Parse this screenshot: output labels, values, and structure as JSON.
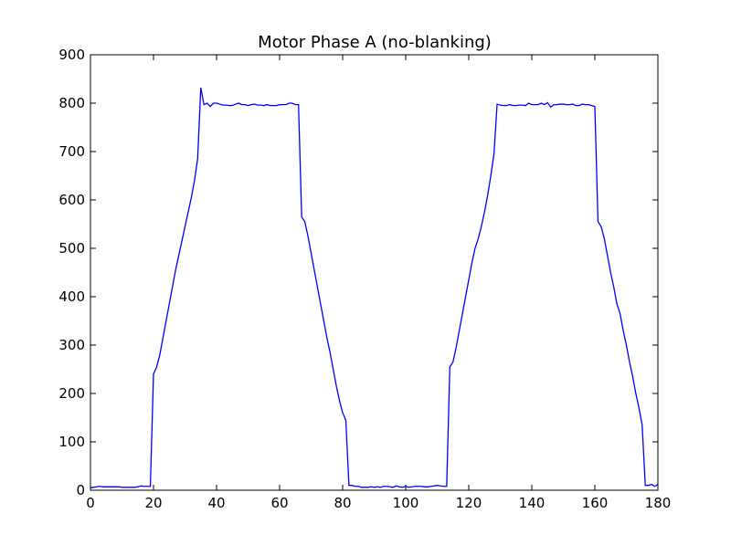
{
  "chart_data": {
    "type": "line",
    "title": "Motor Phase A (no-blanking)",
    "x": [
      0,
      1,
      2,
      3,
      4,
      5,
      6,
      7,
      8,
      9,
      10,
      11,
      12,
      13,
      14,
      15,
      16,
      17,
      18,
      19,
      20,
      21,
      22,
      23,
      24,
      25,
      26,
      27,
      28,
      29,
      30,
      31,
      32,
      33,
      34,
      35,
      36,
      37,
      38,
      39,
      40,
      41,
      42,
      43,
      44,
      45,
      46,
      47,
      48,
      49,
      50,
      51,
      52,
      53,
      54,
      55,
      56,
      57,
      58,
      59,
      60,
      61,
      62,
      63,
      64,
      65,
      66,
      67,
      68,
      69,
      70,
      71,
      72,
      73,
      74,
      75,
      76,
      77,
      78,
      79,
      80,
      81,
      82,
      83,
      84,
      85,
      86,
      87,
      88,
      89,
      90,
      91,
      92,
      93,
      94,
      95,
      96,
      97,
      98,
      99,
      100,
      101,
      102,
      103,
      104,
      105,
      106,
      107,
      108,
      109,
      110,
      111,
      112,
      113,
      114,
      115,
      116,
      117,
      118,
      119,
      120,
      121,
      122,
      123,
      124,
      125,
      126,
      127,
      128,
      129,
      130,
      131,
      132,
      133,
      134,
      135,
      136,
      137,
      138,
      139,
      140,
      141,
      142,
      143,
      144,
      145,
      146,
      147,
      148,
      149,
      150,
      151,
      152,
      153,
      154,
      155,
      156,
      157,
      158,
      159,
      160,
      161,
      162,
      163,
      164,
      165,
      166,
      167,
      168,
      169,
      170,
      171,
      172,
      173,
      174,
      175,
      176,
      177,
      178,
      179,
      180
    ],
    "values": [
      5,
      6,
      7,
      8,
      7,
      7,
      7,
      7,
      7,
      7,
      6,
      6,
      6,
      6,
      6,
      7,
      9,
      8,
      8,
      8,
      240,
      255,
      280,
      315,
      350,
      385,
      420,
      455,
      485,
      515,
      545,
      575,
      605,
      640,
      685,
      832,
      797,
      800,
      793,
      800,
      800,
      798,
      796,
      796,
      795,
      795,
      798,
      800,
      797,
      797,
      795,
      797,
      798,
      796,
      796,
      795,
      797,
      795,
      795,
      795,
      797,
      797,
      797,
      800,
      800,
      797,
      797,
      565,
      555,
      525,
      490,
      455,
      420,
      385,
      350,
      315,
      285,
      250,
      215,
      185,
      160,
      145,
      10,
      10,
      8,
      8,
      6,
      6,
      6,
      7,
      6,
      7,
      6,
      8,
      8,
      7,
      6,
      9,
      7,
      6,
      8,
      6,
      7,
      8,
      8,
      8,
      7,
      7,
      8,
      9,
      10,
      9,
      8,
      8,
      255,
      265,
      295,
      330,
      365,
      400,
      435,
      470,
      500,
      520,
      545,
      575,
      610,
      650,
      695,
      798,
      796,
      795,
      795,
      797,
      795,
      795,
      796,
      796,
      795,
      800,
      797,
      797,
      797,
      800,
      797,
      801,
      792,
      797,
      797,
      798,
      798,
      797,
      797,
      798,
      795,
      795,
      798,
      797,
      797,
      795,
      793,
      555,
      545,
      520,
      485,
      450,
      420,
      385,
      365,
      330,
      300,
      265,
      235,
      200,
      170,
      135,
      10,
      10,
      12,
      8,
      12
    ],
    "color": "#0000ff",
    "xlim": [
      0,
      180
    ],
    "xticks": [
      0,
      20,
      40,
      60,
      80,
      100,
      120,
      140,
      160,
      180
    ],
    "ylim": [
      0,
      900
    ],
    "yticks": [
      0,
      100,
      200,
      300,
      400,
      500,
      600,
      700,
      800,
      900
    ]
  }
}
